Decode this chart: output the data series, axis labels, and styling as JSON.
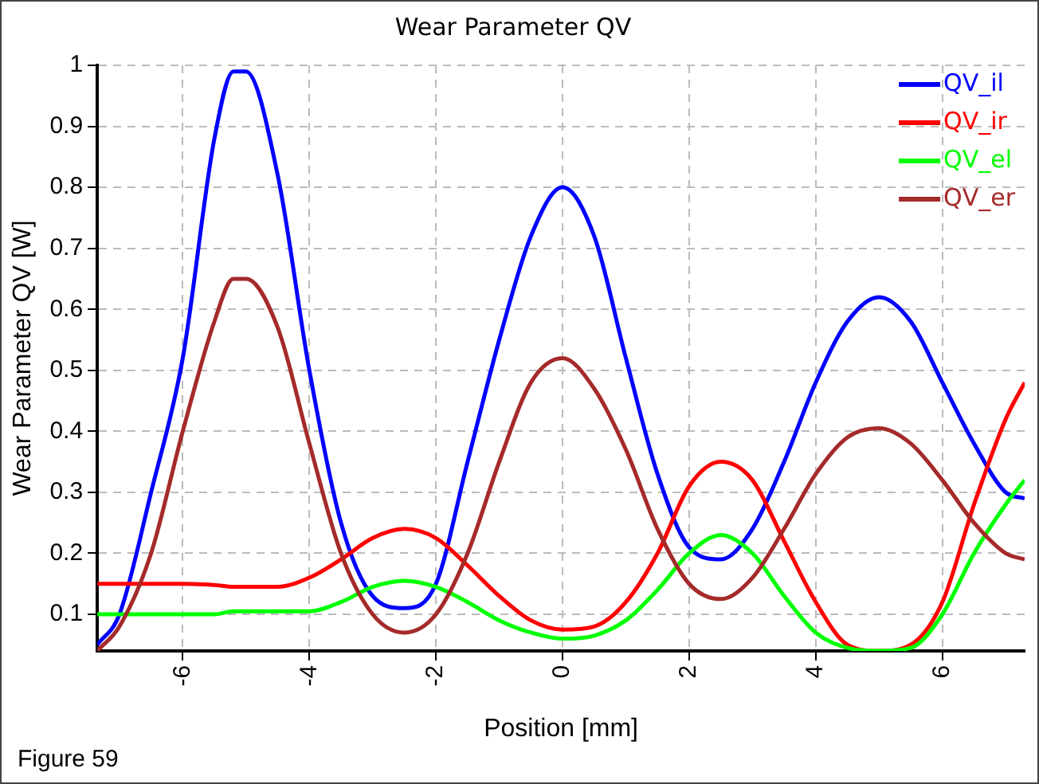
{
  "chart_data": {
    "type": "line",
    "title": "Wear Parameter QV",
    "xlabel": "Position [mm]",
    "ylabel": "Wear Parameter QV [W]",
    "annotations": [
      "Figure 59"
    ],
    "x": [
      -7.35,
      -7,
      -6.5,
      -6,
      -5.5,
      -5.2,
      -5,
      -4.5,
      -4,
      -3.5,
      -3,
      -2.5,
      -2,
      -1.5,
      -1,
      -0.5,
      0,
      0.5,
      1,
      1.5,
      2,
      2.5,
      3,
      3.5,
      4,
      4.5,
      5,
      5.5,
      6,
      6.5,
      7,
      7.3
    ],
    "series": [
      {
        "name": "QV_il",
        "color": "#0000ff",
        "values": [
          0.05,
          0.1,
          0.3,
          0.52,
          0.88,
          0.99,
          0.99,
          0.82,
          0.5,
          0.25,
          0.13,
          0.11,
          0.15,
          0.35,
          0.55,
          0.72,
          0.8,
          0.72,
          0.52,
          0.33,
          0.21,
          0.19,
          0.24,
          0.35,
          0.48,
          0.58,
          0.62,
          0.58,
          0.48,
          0.38,
          0.3,
          0.29
        ]
      },
      {
        "name": "QV_ir",
        "color": "#ff0000",
        "values": [
          0.15,
          0.15,
          0.15,
          0.15,
          0.148,
          0.145,
          0.145,
          0.145,
          0.16,
          0.19,
          0.225,
          0.24,
          0.225,
          0.18,
          0.13,
          0.09,
          0.075,
          0.08,
          0.12,
          0.2,
          0.31,
          0.35,
          0.32,
          0.22,
          0.12,
          0.05,
          0.04,
          0.05,
          0.12,
          0.28,
          0.42,
          0.48
        ]
      },
      {
        "name": "QV_el",
        "color": "#00ff00",
        "values": [
          0.1,
          0.1,
          0.1,
          0.1,
          0.1,
          0.105,
          0.105,
          0.105,
          0.105,
          0.12,
          0.145,
          0.155,
          0.145,
          0.12,
          0.09,
          0.07,
          0.06,
          0.065,
          0.09,
          0.14,
          0.2,
          0.23,
          0.2,
          0.13,
          0.07,
          0.045,
          0.04,
          0.045,
          0.1,
          0.2,
          0.28,
          0.32
        ]
      },
      {
        "name": "QV_er",
        "color": "#a52a2a",
        "values": [
          0.04,
          0.08,
          0.2,
          0.4,
          0.58,
          0.65,
          0.65,
          0.57,
          0.38,
          0.2,
          0.1,
          0.07,
          0.1,
          0.2,
          0.35,
          0.48,
          0.52,
          0.47,
          0.37,
          0.24,
          0.15,
          0.125,
          0.16,
          0.24,
          0.33,
          0.39,
          0.405,
          0.38,
          0.32,
          0.25,
          0.2,
          0.19
        ]
      }
    ],
    "xlim": [
      -7.35,
      7.3
    ],
    "xticks": [
      -6,
      -4,
      -2,
      0,
      2,
      4,
      6
    ],
    "ylim": [
      0.04,
      1
    ],
    "yticks": [
      0.1,
      0.2,
      0.3,
      0.4,
      0.5,
      0.6,
      0.7,
      0.8,
      0.9,
      1
    ],
    "grid": true,
    "legend": "top right",
    "marker": "none",
    "line_style": "solid"
  }
}
